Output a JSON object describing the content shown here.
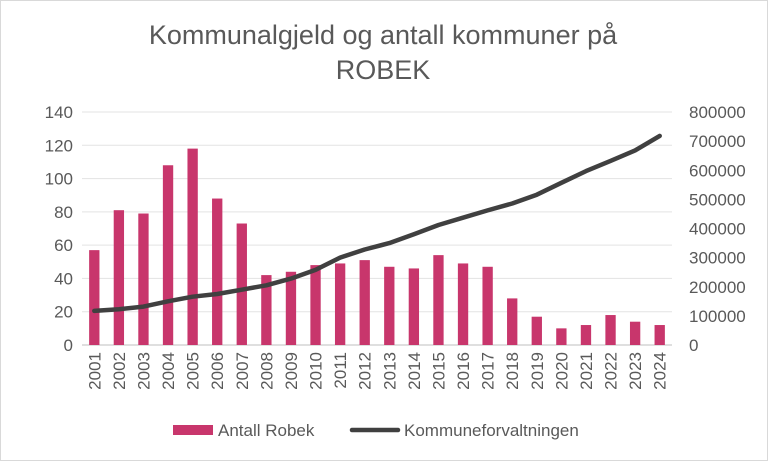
{
  "chart_data": {
    "type": "bar",
    "title_line1": "Kommunalgjeld og antall kommuner på",
    "title_line2": "ROBEK",
    "categories": [
      "2001",
      "2002",
      "2003",
      "2004",
      "2005",
      "2006",
      "2007",
      "2008",
      "2009",
      "2010",
      "2011",
      "2012",
      "2013",
      "2014",
      "2015",
      "2016",
      "2017",
      "2018",
      "2019",
      "2020",
      "2021",
      "2022",
      "2023",
      "2024"
    ],
    "series": [
      {
        "name": "Antall Robek",
        "kind": "bar",
        "axis": "left",
        "color": "#c8366c",
        "values": [
          57,
          81,
          79,
          108,
          118,
          88,
          73,
          42,
          44,
          48,
          49,
          51,
          47,
          46,
          54,
          49,
          47,
          28,
          17,
          10,
          12,
          18,
          14,
          12
        ]
      },
      {
        "name": "Kommuneforvaltningen",
        "kind": "line",
        "axis": "right",
        "color": "#404040",
        "values": [
          117000,
          123000,
          132000,
          150000,
          166000,
          175000,
          190000,
          205000,
          228000,
          258000,
          300000,
          328000,
          350000,
          380000,
          412000,
          437000,
          462000,
          486000,
          516000,
          557000,
          597000,
          632000,
          668000,
          718000
        ]
      }
    ],
    "y_left": {
      "min": 0,
      "max": 140,
      "ticks": [
        0,
        20,
        40,
        60,
        80,
        100,
        120,
        140
      ]
    },
    "y_right": {
      "min": 0,
      "max": 800000,
      "ticks": [
        0,
        100000,
        200000,
        300000,
        400000,
        500000,
        600000,
        700000,
        800000
      ]
    },
    "grid": true,
    "legend_position": "bottom"
  }
}
